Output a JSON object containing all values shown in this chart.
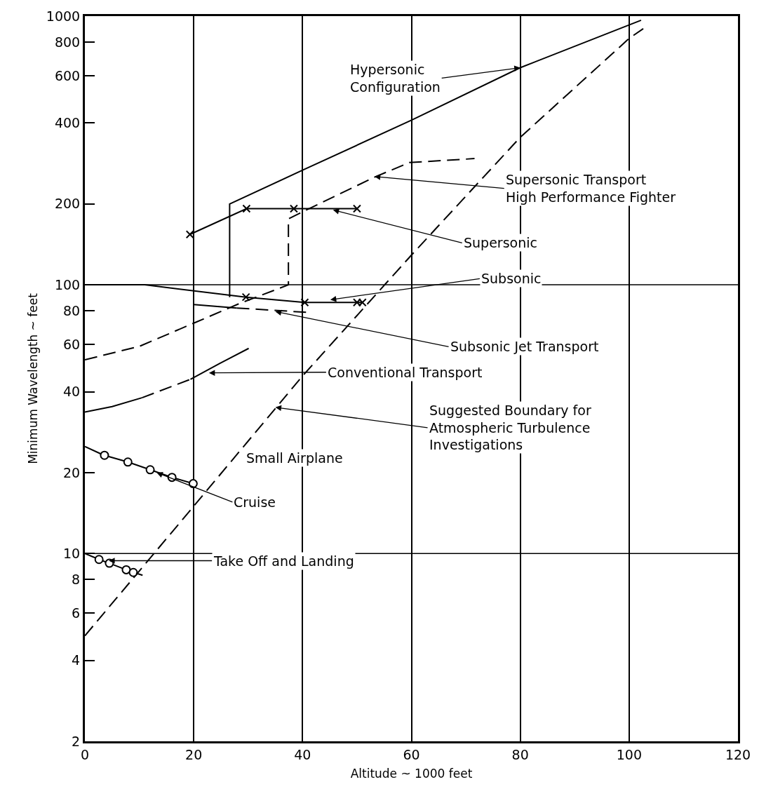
{
  "chart_data": {
    "type": "line",
    "xlabel": "Altitude ~ 1000 feet",
    "ylabel": "Minimum Wavelength ~ feet",
    "xlim": [
      0,
      120
    ],
    "xticks": [
      0,
      20,
      40,
      60,
      80,
      100,
      120
    ],
    "ylim": [
      2,
      1000
    ],
    "yticks": [
      2,
      4,
      6,
      8,
      10,
      20,
      40,
      60,
      80,
      100,
      200,
      400,
      600,
      800,
      1000
    ],
    "log": "y",
    "grid": "x",
    "ref_lines": [
      {
        "axis": "y",
        "value": 10,
        "color": "#000000"
      },
      {
        "axis": "y",
        "value": 100,
        "color": "#000000"
      }
    ],
    "series": [
      {
        "color": "#000000",
        "line_style": "solid",
        "marker": "none",
        "x": [
          26.6,
          26.6,
          40,
          60,
          80,
          102.2
        ],
        "values": [
          90,
          200,
          267,
          410,
          643,
          965
        ]
      },
      {
        "color": "#000000",
        "line_style": "dashed",
        "marker": "none",
        "x": [
          0,
          10,
          20,
          28.3,
          37.4,
          37.4,
          40,
          53.3,
          59.6,
          71.6
        ],
        "values": [
          52.6,
          59,
          72,
          85,
          100,
          176,
          187,
          252,
          285,
          295
        ]
      },
      {
        "color": "#000000",
        "line_style": "solid",
        "marker": "cross",
        "x": [
          19.3,
          29.7,
          38.4,
          50
        ],
        "values": [
          154,
          192,
          192,
          192
        ]
      },
      {
        "color": "#000000",
        "line_style": "solid",
        "marker": "none",
        "x": [
          0,
          11,
          29.6
        ],
        "values": [
          100,
          100,
          90
        ]
      },
      {
        "color": "#000000",
        "line_style": "solid",
        "marker": "cross",
        "x": [
          29.6,
          40.4,
          50,
          51
        ],
        "values": [
          90,
          86,
          86,
          86
        ]
      },
      {
        "color": "#000000",
        "line_style": "solid",
        "marker": "none",
        "x": [
          20,
          27.9
        ],
        "values": [
          84.4,
          82
        ]
      },
      {
        "color": "#000000",
        "line_style": "dashed",
        "marker": "none",
        "x": [
          27.9,
          40.7
        ],
        "values": [
          82,
          79
        ]
      },
      {
        "color": "#000000",
        "line_style": "solid",
        "marker": "none",
        "x": [
          0,
          5,
          10.5
        ],
        "values": [
          33.6,
          35.2,
          38
        ]
      },
      {
        "color": "#000000",
        "line_style": "dashed",
        "marker": "none",
        "x": [
          10.5,
          19.4
        ],
        "values": [
          38,
          44.5
        ]
      },
      {
        "color": "#000000",
        "line_style": "solid",
        "marker": "none",
        "x": [
          19.4,
          24.8,
          30.1
        ],
        "values": [
          44.5,
          51,
          58
        ]
      },
      {
        "color": "#000000",
        "line_style": "dashed",
        "marker": "none",
        "x": [
          0,
          20,
          40,
          60,
          80,
          100,
          102.6
        ],
        "values": [
          4.94,
          15,
          45.8,
          129,
          354,
          826,
          898
        ]
      },
      {
        "color": "#000000",
        "line_style": "solid",
        "marker": "none",
        "x": [
          0,
          3.1
        ],
        "values": [
          25,
          23.4
        ]
      },
      {
        "color": "#000000",
        "line_style": "solid",
        "marker": "circle",
        "x": [
          3.6,
          7.9,
          12,
          16,
          19.9
        ],
        "values": [
          23.2,
          21.9,
          20.5,
          19.2,
          18.2
        ]
      },
      {
        "color": "#000000",
        "line_style": "solid",
        "marker": "none",
        "x": [
          0,
          2.1
        ],
        "values": [
          10,
          9.6
        ]
      },
      {
        "color": "#000000",
        "line_style": "solid",
        "marker": "circle",
        "x": [
          2.6,
          4.5,
          7.6,
          8.9
        ],
        "values": [
          9.5,
          9.2,
          8.7,
          8.5
        ]
      },
      {
        "color": "#000000",
        "line_style": "solid",
        "marker": "none",
        "x": [
          9.4,
          10.6
        ],
        "values": [
          8.45,
          8.3
        ]
      }
    ],
    "annotations": [
      {
        "text": "Hypersonic\nConfiguration",
        "x": 80,
        "y": 643
      },
      {
        "text": "Supersonic Transport\nHigh Performance Fighter",
        "x": 53.2,
        "y": 253
      },
      {
        "text": "Supersonic",
        "x": 45.6,
        "y": 190
      },
      {
        "text": "Subsonic",
        "x": 45.1,
        "y": 88
      },
      {
        "text": "Subsonic Jet Transport",
        "x": 35,
        "y": 79.5
      },
      {
        "text": "Conventional Transport",
        "x": 22.8,
        "y": 47
      },
      {
        "text": "Suggested Boundary for\nAtmospheric Turbulence\nInvestigations",
        "x": 35,
        "y": 35
      },
      "Small Airplane",
      {
        "text": "Cruise",
        "x": 13.2,
        "y": 20
      },
      {
        "text": "Take Off and Landing",
        "x": 4.4,
        "y": 9.4
      }
    ]
  }
}
